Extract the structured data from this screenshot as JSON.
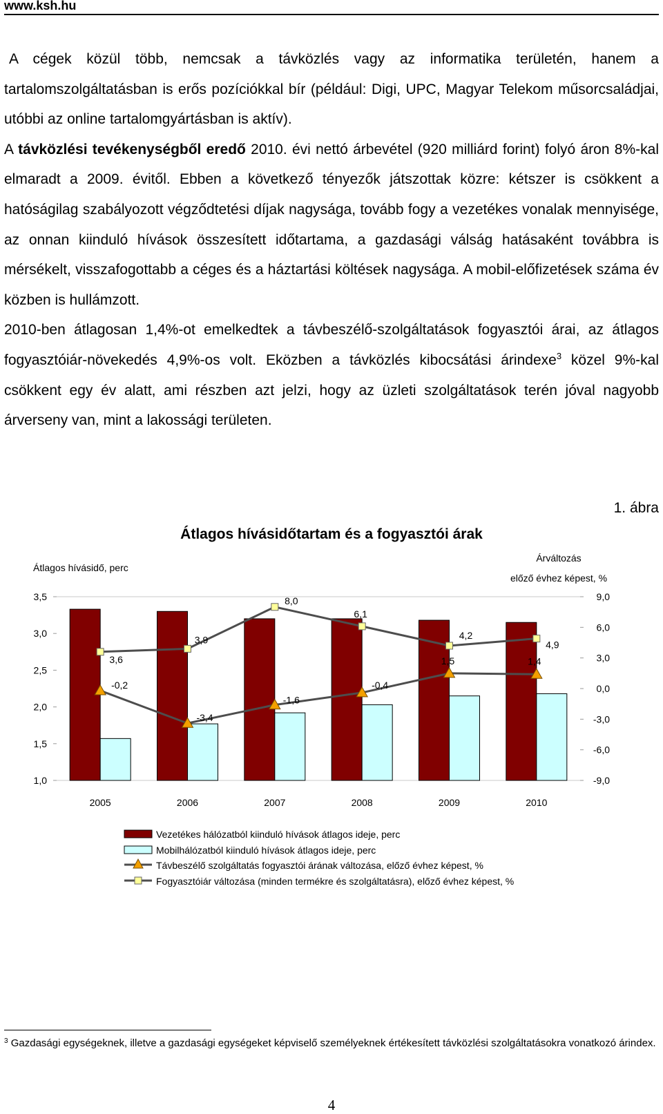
{
  "header": {
    "site": "www.ksh.hu"
  },
  "paragraphs": {
    "p1": "A cégek közül több, nemcsak a távközlés vagy az informatika területén, hanem a tartalomszolgáltatásban is erős pozíciókkal bír (például: Digi, UPC, Magyar Telekom műsorcsaládjai, utóbbi az online tartalomgyártásban is aktív).",
    "p2_pre": "A ",
    "p2_bold": "távközlési tevékenységből eredő",
    "p2_post": " 2010. évi nettó árbevétel (920 milliárd forint) folyó áron 8%-kal elmaradt a 2009. évitől. Ebben a következő tényezők játszottak közre: kétszer is csökkent a hatóságilag szabályozott végződtetési díjak nagysága, tovább fogy a vezetékes vonalak mennyisége, az onnan kiinduló hívások összesített időtartama, a gazdasági válság hatásaként továbbra is mérsékelt, visszafogottabb a céges és a háztartási költések nagysága. A mobil-előfizetések száma év közben is hullámzott.",
    "p3_pre": "2010-ben átlagosan 1,4%-ot emelkedtek a távbeszélő-szolgáltatások fogyasztói árai, az átlagos fogyasztóiár-növekedés 4,9%-os volt. Eközben a távközlés kibocsátási árindexe",
    "p3_sup": "3",
    "p3_post": " közel 9%-kal csökkent egy év alatt, ami részben azt jelzi, hogy az üzleti szolgáltatások terén jóval nagyobb árverseny van, mint a lakossági területen."
  },
  "figure": {
    "number": "1. ábra",
    "title": "Átlagos hívásidőtartam és a fogyasztói árak"
  },
  "chart_data": {
    "type": "bar",
    "title": "Átlagos hívásidőtartam és a fogyasztói árak",
    "categories": [
      "2005",
      "2006",
      "2007",
      "2008",
      "2009",
      "2010"
    ],
    "left_axis": {
      "label": "Átlagos hívásidő, perc",
      "min": 1.0,
      "max": 3.5,
      "ticks": [
        "1,0",
        "1,5",
        "2,0",
        "2,5",
        "3,0",
        "3,5"
      ]
    },
    "right_axis": {
      "label_line1": "Árváltozás",
      "label_line2": "előző évhez képest, %",
      "min": -9.0,
      "max": 9.0,
      "ticks": [
        "-9,0",
        "-6,0",
        "-3,0",
        "0,0",
        "3,0",
        "6,0",
        "9,0"
      ]
    },
    "series": [
      {
        "name": "Vezetékes hálózatból kiinduló hívások átlagos ideje, perc",
        "kind": "bar",
        "axis": "left",
        "color": "#800000",
        "values": [
          3.33,
          3.3,
          3.2,
          3.2,
          3.18,
          3.15
        ]
      },
      {
        "name": "Mobilhálózatból kiinduló hívások átlagos ideje, perc",
        "kind": "bar",
        "axis": "left",
        "color": "#ccffff",
        "values": [
          1.57,
          1.77,
          1.92,
          2.03,
          2.15,
          2.18
        ]
      },
      {
        "name": "Távbeszélő szolgáltatás fogyasztói árának változása, előző évhez képest, %",
        "kind": "line",
        "axis": "right",
        "marker": "triangle",
        "color": "#f4a000",
        "values": [
          -0.2,
          -3.4,
          -1.6,
          -0.4,
          1.5,
          1.4
        ],
        "labels": [
          "-0,2",
          "-3,4",
          "-1,6",
          "-0,4",
          "1,5",
          "1,4"
        ]
      },
      {
        "name": "Fogyasztóiár változása (minden termékre és szolgáltatásra), előző évhez képest, %",
        "kind": "line",
        "axis": "right",
        "marker": "square",
        "color": "#ffff99",
        "values": [
          3.6,
          3.9,
          8.0,
          6.1,
          4.2,
          4.9
        ],
        "labels": [
          "3,6",
          "3,9",
          "8,0",
          "6,1",
          "4,2",
          "4,9"
        ]
      }
    ],
    "legend_position": "bottom"
  },
  "footnote": {
    "mark": "3",
    "text": "Gazdasági egységeknek, illetve a gazdasági egységeket képviselő személyeknek értékesített távközlési szolgáltatásokra vonatkozó árindex."
  },
  "page_number": "4"
}
